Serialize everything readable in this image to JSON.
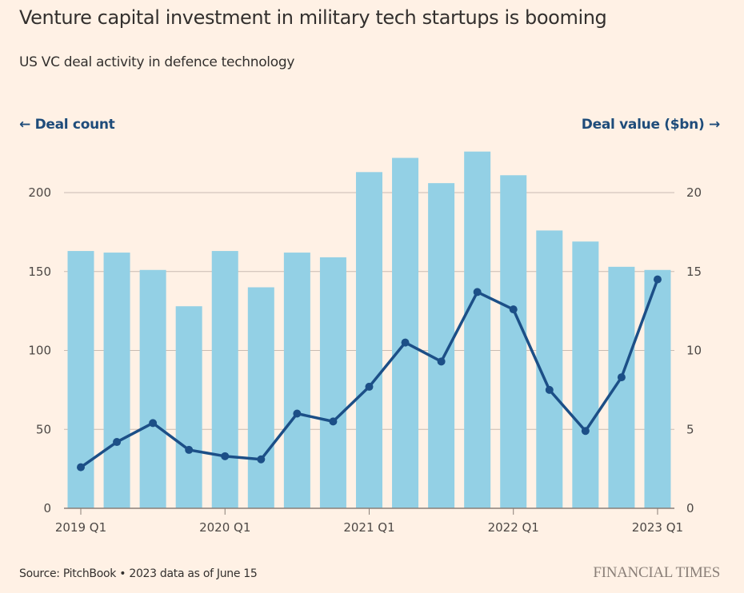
{
  "header": {
    "title": "Venture capital investment in military tech startups is booming",
    "subtitle": "US VC deal activity in defence technology"
  },
  "axis_labels": {
    "left": "← Deal count",
    "right": "Deal value ($bn) →"
  },
  "footer": {
    "source": "Source: PitchBook • 2023 data as of June 15",
    "brand": "FINANCIAL TIMES"
  },
  "colors": {
    "background": "#fff1e5",
    "bars": "#93d0e5",
    "line": "#1c4f87",
    "grid": "#c8bbb2",
    "baseline": "#8a7f78"
  },
  "chart_data": {
    "type": "bar+line",
    "title": "Venture capital investment in military tech startups is booming",
    "subtitle": "US VC deal activity in defence technology",
    "categories": [
      "2019 Q1",
      "2019 Q2",
      "2019 Q3",
      "2019 Q4",
      "2020 Q1",
      "2020 Q2",
      "2020 Q3",
      "2020 Q4",
      "2021 Q1",
      "2021 Q2",
      "2021 Q3",
      "2021 Q4",
      "2022 Q1",
      "2022 Q2",
      "2022 Q3",
      "2022 Q4",
      "2023 Q1"
    ],
    "x_tick_labels": [
      "2019 Q1",
      "2020 Q1",
      "2021 Q1",
      "2022 Q1",
      "2023 Q1"
    ],
    "series": [
      {
        "name": "Deal count",
        "type": "bar",
        "axis": "left",
        "values": [
          163,
          162,
          151,
          128,
          163,
          140,
          162,
          159,
          213,
          222,
          206,
          226,
          211,
          176,
          169,
          153,
          151
        ]
      },
      {
        "name": "Deal value ($bn)",
        "type": "line",
        "axis": "right",
        "values": [
          2.6,
          4.2,
          5.4,
          3.7,
          3.3,
          3.1,
          6.0,
          5.5,
          7.7,
          10.5,
          9.3,
          13.7,
          12.6,
          7.5,
          4.9,
          8.3,
          14.5
        ]
      }
    ],
    "ylabel_left": "Deal count",
    "ylabel_right": "Deal value ($bn)",
    "ylim_left": [
      0,
      200
    ],
    "ylim_right": [
      0,
      20
    ],
    "yticks_left": [
      0,
      50,
      100,
      150,
      200
    ],
    "yticks_right": [
      0,
      5,
      10,
      15,
      20
    ],
    "grid": true,
    "source": "Source: PitchBook • 2023 data as of June 15"
  }
}
